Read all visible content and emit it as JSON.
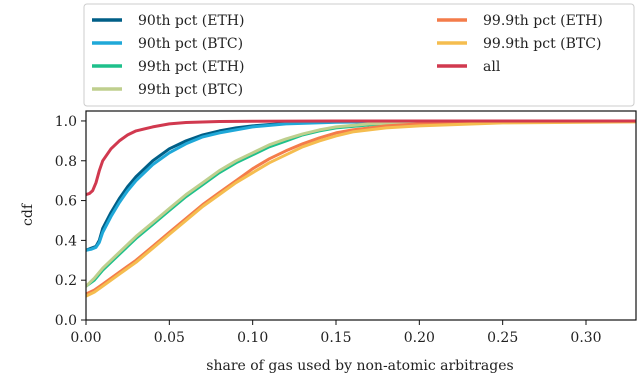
{
  "chart_data": {
    "type": "line",
    "xlabel": "share of gas used by non-atomic arbitrages",
    "ylabel": "cdf",
    "xlim": [
      0.0,
      0.33
    ],
    "ylim": [
      0.0,
      1.05
    ],
    "x_ticks": [
      "0.00",
      "0.05",
      "0.10",
      "0.15",
      "0.20",
      "0.25",
      "0.30"
    ],
    "y_ticks": [
      "0.0",
      "0.2",
      "0.4",
      "0.6",
      "0.8",
      "1.0"
    ],
    "grid": false,
    "legend_placement": "top (above plot), two columns",
    "series": [
      {
        "name": "90th pct (ETH)",
        "color": "#005f87",
        "x": [
          0,
          0.003,
          0.006,
          0.008,
          0.01,
          0.015,
          0.02,
          0.025,
          0.03,
          0.04,
          0.05,
          0.06,
          0.07,
          0.08,
          0.09,
          0.1,
          0.12,
          0.15,
          0.2,
          0.33
        ],
        "y": [
          0.35,
          0.36,
          0.37,
          0.4,
          0.46,
          0.54,
          0.61,
          0.67,
          0.72,
          0.8,
          0.86,
          0.9,
          0.93,
          0.95,
          0.965,
          0.975,
          0.988,
          0.995,
          0.999,
          1.0
        ]
      },
      {
        "name": "90th pct (BTC)",
        "color": "#1fa8d8",
        "x": [
          0,
          0.003,
          0.006,
          0.008,
          0.01,
          0.015,
          0.02,
          0.025,
          0.03,
          0.04,
          0.05,
          0.06,
          0.07,
          0.08,
          0.09,
          0.1,
          0.12,
          0.15,
          0.2,
          0.33
        ],
        "y": [
          0.35,
          0.355,
          0.365,
          0.39,
          0.44,
          0.52,
          0.59,
          0.65,
          0.7,
          0.78,
          0.84,
          0.885,
          0.92,
          0.94,
          0.955,
          0.97,
          0.985,
          0.993,
          0.998,
          1.0
        ]
      },
      {
        "name": "99th pct (ETH)",
        "color": "#1ec08b",
        "x": [
          0,
          0.005,
          0.01,
          0.02,
          0.03,
          0.04,
          0.05,
          0.06,
          0.07,
          0.08,
          0.09,
          0.1,
          0.11,
          0.12,
          0.13,
          0.14,
          0.15,
          0.17,
          0.2,
          0.25,
          0.33
        ],
        "y": [
          0.17,
          0.2,
          0.25,
          0.33,
          0.41,
          0.48,
          0.55,
          0.62,
          0.68,
          0.74,
          0.79,
          0.83,
          0.87,
          0.9,
          0.93,
          0.95,
          0.965,
          0.98,
          0.99,
          0.998,
          1.0
        ]
      },
      {
        "name": "99th pct (BTC)",
        "color": "#bfcf8e",
        "x": [
          0,
          0.005,
          0.01,
          0.02,
          0.03,
          0.04,
          0.05,
          0.06,
          0.07,
          0.08,
          0.09,
          0.1,
          0.11,
          0.12,
          0.13,
          0.14,
          0.15,
          0.17,
          0.2,
          0.25,
          0.33
        ],
        "y": [
          0.17,
          0.21,
          0.26,
          0.34,
          0.42,
          0.49,
          0.56,
          0.63,
          0.69,
          0.75,
          0.8,
          0.84,
          0.88,
          0.91,
          0.935,
          0.955,
          0.97,
          0.985,
          0.993,
          0.998,
          1.0
        ]
      },
      {
        "name": "99.9th pct (ETH)",
        "color": "#f47c4a",
        "x": [
          0,
          0.005,
          0.01,
          0.02,
          0.03,
          0.04,
          0.05,
          0.06,
          0.07,
          0.08,
          0.09,
          0.1,
          0.11,
          0.12,
          0.13,
          0.14,
          0.15,
          0.16,
          0.18,
          0.2,
          0.25,
          0.33
        ],
        "y": [
          0.13,
          0.15,
          0.18,
          0.24,
          0.3,
          0.37,
          0.44,
          0.51,
          0.58,
          0.64,
          0.7,
          0.76,
          0.81,
          0.85,
          0.885,
          0.915,
          0.94,
          0.955,
          0.975,
          0.985,
          0.995,
          1.0
        ]
      },
      {
        "name": "99.9th pct (BTC)",
        "color": "#f5bd4f",
        "x": [
          0,
          0.005,
          0.01,
          0.02,
          0.03,
          0.04,
          0.05,
          0.06,
          0.07,
          0.08,
          0.09,
          0.1,
          0.11,
          0.12,
          0.13,
          0.14,
          0.15,
          0.16,
          0.18,
          0.2,
          0.25,
          0.33
        ],
        "y": [
          0.12,
          0.14,
          0.17,
          0.23,
          0.29,
          0.36,
          0.43,
          0.5,
          0.57,
          0.63,
          0.69,
          0.74,
          0.79,
          0.83,
          0.87,
          0.9,
          0.925,
          0.945,
          0.965,
          0.975,
          0.99,
          0.995
        ]
      },
      {
        "name": "all",
        "color": "#d1394f",
        "x": [
          0,
          0.002,
          0.004,
          0.006,
          0.008,
          0.01,
          0.015,
          0.02,
          0.025,
          0.03,
          0.04,
          0.05,
          0.06,
          0.08,
          0.1,
          0.15,
          0.33
        ],
        "y": [
          0.63,
          0.635,
          0.65,
          0.69,
          0.75,
          0.8,
          0.86,
          0.9,
          0.93,
          0.95,
          0.97,
          0.985,
          0.992,
          0.997,
          0.999,
          1.0,
          1.0
        ]
      }
    ]
  }
}
